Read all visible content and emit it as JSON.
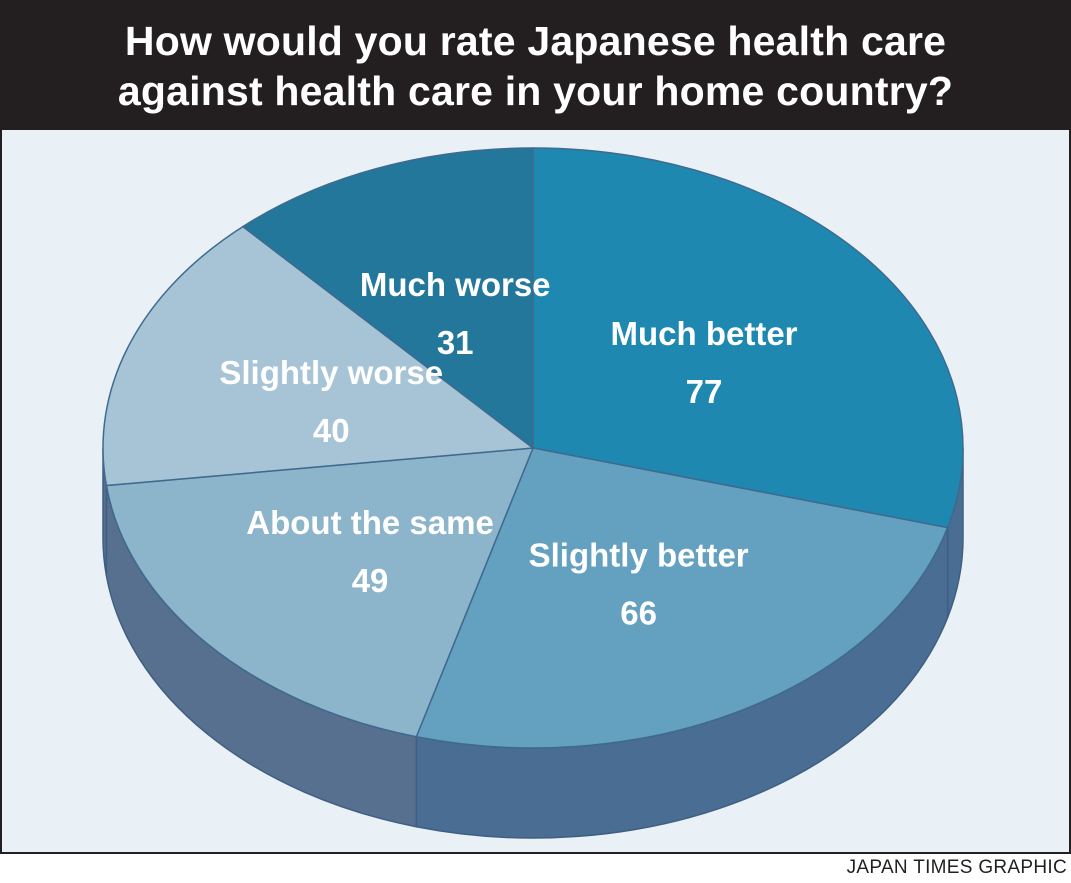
{
  "chart_data": {
    "type": "pie",
    "title_lines": [
      "How would you rate Japanese health care",
      "against health care in your home country?"
    ],
    "slices": [
      {
        "label": "Much better",
        "value": 77,
        "color": "#1e88b0",
        "side_color": "#4a6d93"
      },
      {
        "label": "Slightly better",
        "value": 66,
        "color": "#64a0c0",
        "side_color": "#4a6d93"
      },
      {
        "label": "About the same",
        "value": 49,
        "color": "#8cb4ca",
        "side_color": "#58708f"
      },
      {
        "label": "Slightly worse",
        "value": 40,
        "color": "#a6c4d6",
        "side_color": "#58708f"
      },
      {
        "label": "Much worse",
        "value": 31,
        "color": "#23779a",
        "side_color": "#4a6d93"
      }
    ],
    "style": "3d"
  },
  "credit": "JAPAN TIMES GRAPHIC"
}
